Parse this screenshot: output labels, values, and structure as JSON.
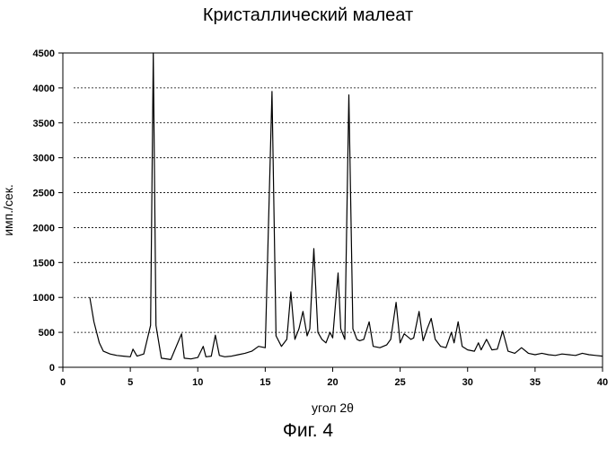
{
  "chart_data": {
    "type": "line",
    "title": "Кристаллический малеат",
    "xlabel": "угол 2θ",
    "ylabel": "имп./сек.",
    "xlim": [
      0,
      40
    ],
    "ylim": [
      0,
      4500
    ],
    "x_ticks": [
      "0",
      "5",
      "10",
      "15",
      "20",
      "25",
      "30",
      "35",
      "40"
    ],
    "y_ticks": [
      "0",
      "500",
      "1000",
      "1500",
      "2000",
      "2500",
      "3000",
      "3500",
      "4000",
      "4500"
    ],
    "grid": "horizontal-dashed",
    "series": [
      {
        "x": [
          2.0,
          2.3,
          2.7,
          3.0,
          3.5,
          4.0,
          4.5,
          5.0,
          5.2,
          5.5,
          6.0,
          6.5,
          6.7,
          6.9,
          7.3,
          8.0,
          8.8,
          8.9,
          9.0,
          9.5,
          10.0,
          10.4,
          10.6,
          11.0,
          11.3,
          11.6,
          12.0,
          12.5,
          13.0,
          13.5,
          14.0,
          14.5,
          15.0,
          15.5,
          15.8,
          16.2,
          16.6,
          16.9,
          17.2,
          17.5,
          17.8,
          18.1,
          18.3,
          18.6,
          18.9,
          19.2,
          19.5,
          19.8,
          20.0,
          20.4,
          20.6,
          20.9,
          21.2,
          21.5,
          21.8,
          22.0,
          22.3,
          22.7,
          23.0,
          23.5,
          24.0,
          24.3,
          24.7,
          25.0,
          25.3,
          25.8,
          26.0,
          26.4,
          26.7,
          27.0,
          27.3,
          27.6,
          28.0,
          28.4,
          28.8,
          29.0,
          29.3,
          29.6,
          30.0,
          30.5,
          30.8,
          31.0,
          31.4,
          31.8,
          32.2,
          32.6,
          33.0,
          33.5,
          34.0,
          34.5,
          35.0,
          35.5,
          36.0,
          36.5,
          37.0,
          37.5,
          38.0,
          38.5,
          39.0,
          39.5,
          40.0
        ],
        "y": [
          1000,
          650,
          350,
          230,
          190,
          170,
          160,
          150,
          260,
          160,
          190,
          600,
          4500,
          600,
          130,
          110,
          480,
          300,
          130,
          120,
          140,
          300,
          150,
          160,
          460,
          170,
          150,
          160,
          180,
          200,
          230,
          300,
          280,
          3950,
          450,
          300,
          400,
          1080,
          400,
          550,
          800,
          450,
          550,
          1700,
          500,
          400,
          350,
          500,
          420,
          1350,
          550,
          400,
          3900,
          550,
          400,
          380,
          400,
          650,
          300,
          280,
          320,
          400,
          930,
          350,
          480,
          400,
          420,
          800,
          380,
          550,
          700,
          400,
          300,
          280,
          500,
          350,
          650,
          300,
          250,
          230,
          350,
          250,
          400,
          250,
          260,
          520,
          230,
          200,
          280,
          200,
          180,
          200,
          180,
          170,
          190,
          180,
          170,
          200,
          180,
          170,
          160
        ]
      }
    ]
  },
  "figure_caption": "Фиг. 4"
}
